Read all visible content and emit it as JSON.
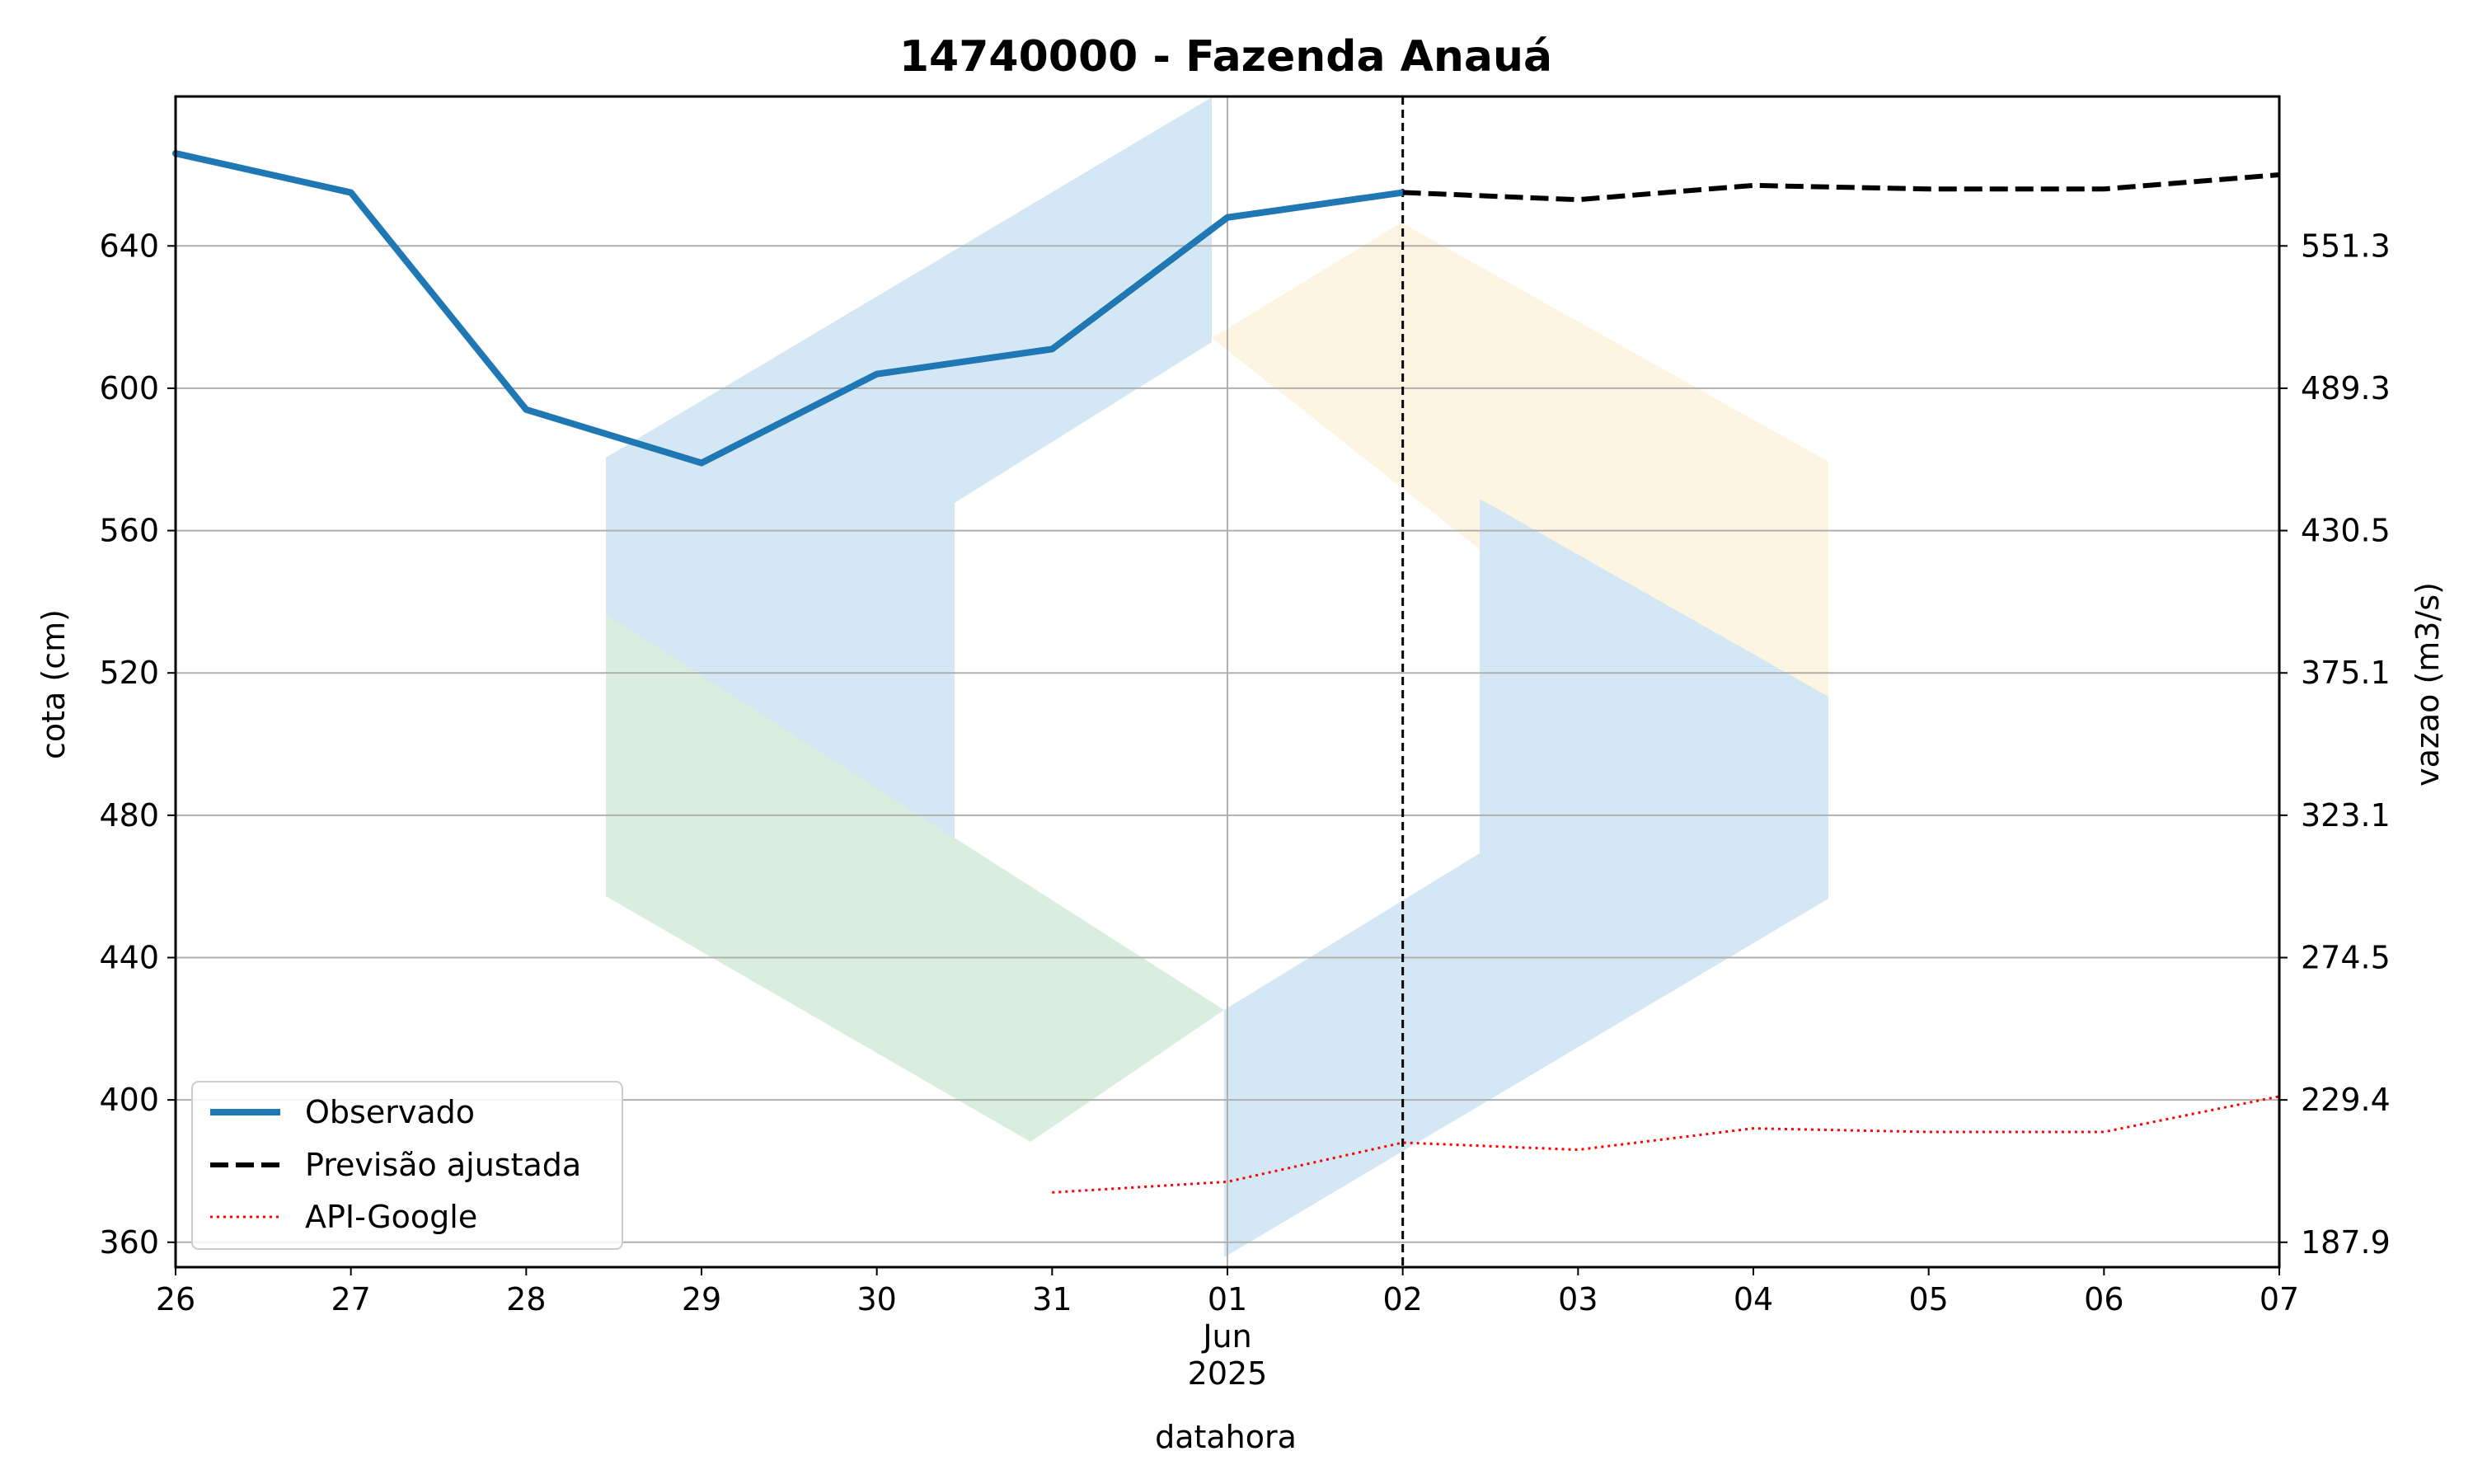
{
  "chart_data": {
    "type": "line",
    "title": "14740000 - Fazenda Anauá",
    "xlabel": "datahora",
    "ylabel": "cota (cm)",
    "y2label": "vazao (m3/s)",
    "x": [
      "2025-05-26",
      "2025-05-27",
      "2025-05-28",
      "2025-05-29",
      "2025-05-30",
      "2025-05-31",
      "2025-06-01",
      "2025-06-02",
      "2025-06-03",
      "2025-06-04",
      "2025-06-05",
      "2025-06-06",
      "2025-06-07"
    ],
    "xticks": [
      "26",
      "27",
      "28",
      "29",
      "30",
      "31",
      "01",
      "02",
      "03",
      "04",
      "05",
      "06",
      "07"
    ],
    "xtick_sub": [
      "Jun",
      "2025"
    ],
    "ylim": [
      353,
      682
    ],
    "yticks": [
      640,
      600,
      560,
      520,
      480,
      440,
      400,
      360
    ],
    "y2ticks": [
      "551.3",
      "489.3",
      "430.5",
      "375.1",
      "323.1",
      "274.5",
      "229.4",
      "187.9"
    ],
    "forecast_start": "2025-06-02",
    "grid": true,
    "legend_position": "lower-left",
    "series": [
      {
        "name": "Observado",
        "color": "#1f77b4",
        "style": "solid",
        "x": [
          "2025-05-26",
          "2025-05-27",
          "2025-05-28",
          "2025-05-29",
          "2025-05-30",
          "2025-05-31",
          "2025-06-01",
          "2025-06-02"
        ],
        "values": [
          666,
          655,
          594,
          579,
          604,
          611,
          648,
          655
        ]
      },
      {
        "name": "Previsão ajustada",
        "color": "#000000",
        "style": "dashed",
        "x": [
          "2025-06-02",
          "2025-06-03",
          "2025-06-04",
          "2025-06-05",
          "2025-06-06",
          "2025-06-07"
        ],
        "values": [
          655,
          653,
          657,
          656,
          656,
          660
        ]
      },
      {
        "name": "API-Google",
        "color": "#ff0000",
        "style": "dotted",
        "x": [
          "2025-05-31",
          "2025-06-01",
          "2025-06-02",
          "2025-06-03",
          "2025-06-04",
          "2025-06-05",
          "2025-06-06",
          "2025-06-07"
        ],
        "values": [
          374,
          377,
          388,
          386,
          392,
          391,
          391,
          401
        ]
      }
    ]
  }
}
